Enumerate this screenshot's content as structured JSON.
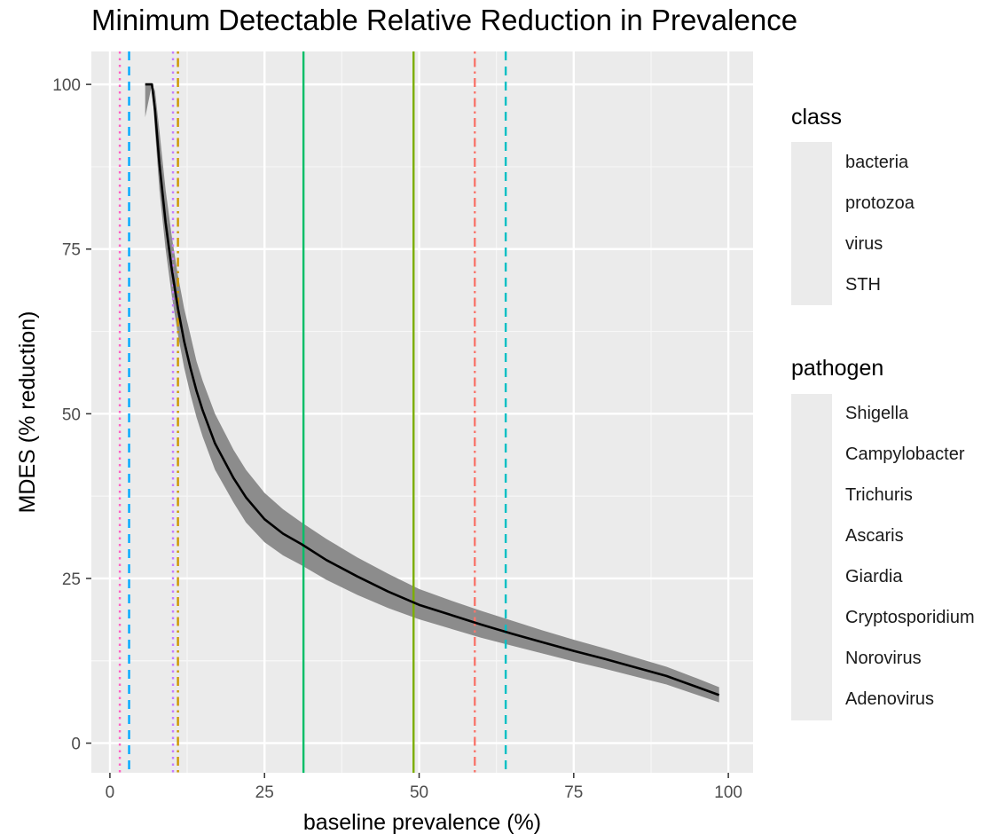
{
  "chart_data": {
    "type": "line",
    "title": "Minimum Detectable Relative Reduction in Prevalence",
    "xlabel": "baseline prevalence (%)",
    "ylabel": "MDES (% reduction)",
    "xlim": [
      -3,
      104
    ],
    "ylim": [
      -4.5,
      105
    ],
    "xticks": [
      0,
      25,
      50,
      75,
      100
    ],
    "yticks": [
      0,
      25,
      50,
      75,
      100
    ],
    "grid": true,
    "legend_position": "right",
    "curve": {
      "x": [
        5.7,
        6.8,
        7.3,
        8,
        9,
        10,
        11,
        12,
        13,
        14,
        15,
        17,
        20,
        22,
        25,
        28,
        31,
        35,
        40,
        45,
        50,
        55,
        60,
        65,
        70,
        75,
        80,
        85,
        90,
        95,
        98.5
      ],
      "y": [
        100,
        100,
        96,
        88,
        79,
        72,
        66,
        61,
        57,
        53.5,
        50.5,
        45.5,
        40.2,
        37.3,
        34,
        31.8,
        30.2,
        27.8,
        25.3,
        23,
        21,
        19.5,
        18,
        16.6,
        15.3,
        14,
        12.8,
        11.5,
        10.2,
        8.5,
        7.3
      ],
      "lower": [
        95,
        100,
        93,
        84,
        75,
        68,
        62,
        57,
        53,
        49.5,
        46.5,
        41.5,
        36.5,
        33.5,
        30.5,
        28.5,
        27,
        24.8,
        22.5,
        20.5,
        18.8,
        17.4,
        16,
        14.8,
        13.6,
        12.4,
        11.3,
        10.1,
        8.9,
        7.3,
        6.2
      ],
      "upper": [
        100,
        100,
        99,
        93,
        84,
        77,
        71,
        66,
        62,
        58,
        55,
        50,
        44.5,
        41.5,
        38,
        35.5,
        33.5,
        31,
        28.2,
        25.7,
        23.4,
        21.7,
        20.1,
        18.6,
        17.1,
        15.7,
        14.4,
        13,
        11.6,
        9.8,
        8.5
      ],
      "color": "#000000",
      "band_color": "#8c8c8c"
    },
    "vlines": [
      {
        "pathogen": "Adenovirus",
        "class": "virus",
        "x": 1.6,
        "color": "#FF61C3"
      },
      {
        "pathogen": "Cryptosporidium",
        "class": "protozoa",
        "x": 3.1,
        "color": "#00A9FF"
      },
      {
        "pathogen": "Norovirus",
        "class": "virus",
        "x": 10.2,
        "color": "#C77CFF"
      },
      {
        "pathogen": "Campylobacter",
        "class": "bacteria",
        "x": 11,
        "color": "#CD9600"
      },
      {
        "pathogen": "Ascaris",
        "class": "STH",
        "x": 31.3,
        "color": "#00BE67"
      },
      {
        "pathogen": "Trichuris",
        "class": "STH",
        "x": 49.1,
        "color": "#7CAE00"
      },
      {
        "pathogen": "Shigella",
        "class": "bacteria",
        "x": 59,
        "color": "#F8766D"
      },
      {
        "pathogen": "Giardia",
        "class": "protozoa",
        "x": 64,
        "color": "#00BFC4"
      }
    ]
  },
  "legend": {
    "class": {
      "title": "class",
      "items": [
        {
          "label": "bacteria",
          "dash": "dotdash"
        },
        {
          "label": "protozoa",
          "dash": "dashed"
        },
        {
          "label": "virus",
          "dash": "dotted"
        },
        {
          "label": "STH",
          "dash": "solid"
        }
      ],
      "color": "#1f4fff"
    },
    "pathogen": {
      "title": "pathogen",
      "items": [
        {
          "label": "Shigella",
          "color": "#F8766D"
        },
        {
          "label": "Campylobacter",
          "color": "#CD9600"
        },
        {
          "label": "Trichuris",
          "color": "#7CAE00"
        },
        {
          "label": "Ascaris",
          "color": "#00BE67"
        },
        {
          "label": "Giardia",
          "color": "#00BFC4"
        },
        {
          "label": "Cryptosporidium",
          "color": "#00A9FF"
        },
        {
          "label": "Norovirus",
          "color": "#C77CFF"
        },
        {
          "label": "Adenovirus",
          "color": "#FF61C3"
        }
      ]
    }
  }
}
